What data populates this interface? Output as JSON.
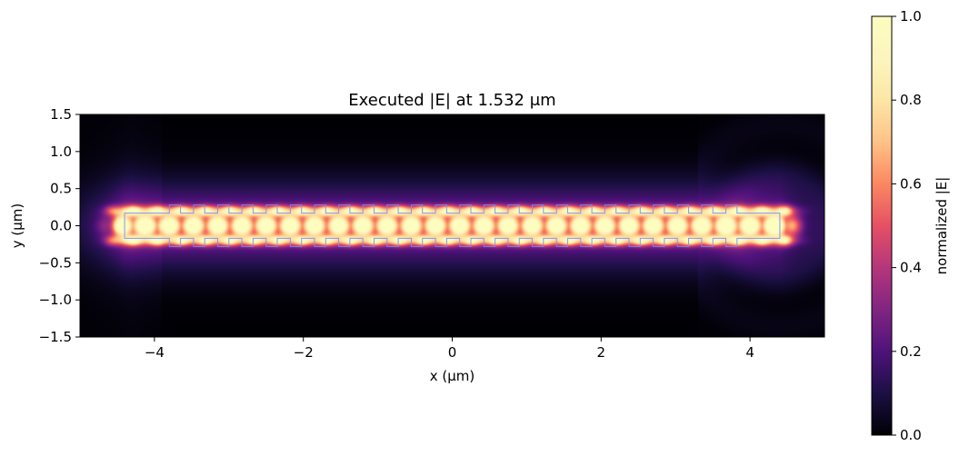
{
  "chart_data": {
    "type": "heatmap",
    "title": "Executed |E| at 1.532 μm",
    "xlabel": "x (μm)",
    "ylabel": "y (μm)",
    "xlim": [
      -5,
      5
    ],
    "ylim": [
      -1.5,
      1.5
    ],
    "x_ticks": [
      -4,
      -2,
      0,
      2,
      4
    ],
    "x_tick_labels": [
      "−4",
      "−2",
      "0",
      "2",
      "4"
    ],
    "y_ticks": [
      1.5,
      1.0,
      0.5,
      0.0,
      -0.5,
      -1.0,
      -1.5
    ],
    "y_tick_labels": [
      "1.5",
      "1.0",
      "0.5",
      "0.0",
      "−0.5",
      "−1.0",
      "−1.5"
    ],
    "colormap": "magma",
    "colorbar": {
      "label": "normalized |E|",
      "range": [
        0,
        1
      ],
      "ticks": [
        0.0,
        0.2,
        0.4,
        0.6,
        0.8,
        1.0
      ],
      "tick_labels": [
        "0.0",
        "0.2",
        "0.4",
        "0.6",
        "0.8",
        "1.0"
      ]
    },
    "waveguide": {
      "x_range": [
        -4.4,
        4.4
      ],
      "half_width": 0.17,
      "outline_color": "#7a8cff"
    },
    "grating": {
      "x_start": -3.8,
      "x_end": 3.8,
      "period": 0.325,
      "tooth_width": 0.15,
      "half_width": 0.28
    }
  }
}
